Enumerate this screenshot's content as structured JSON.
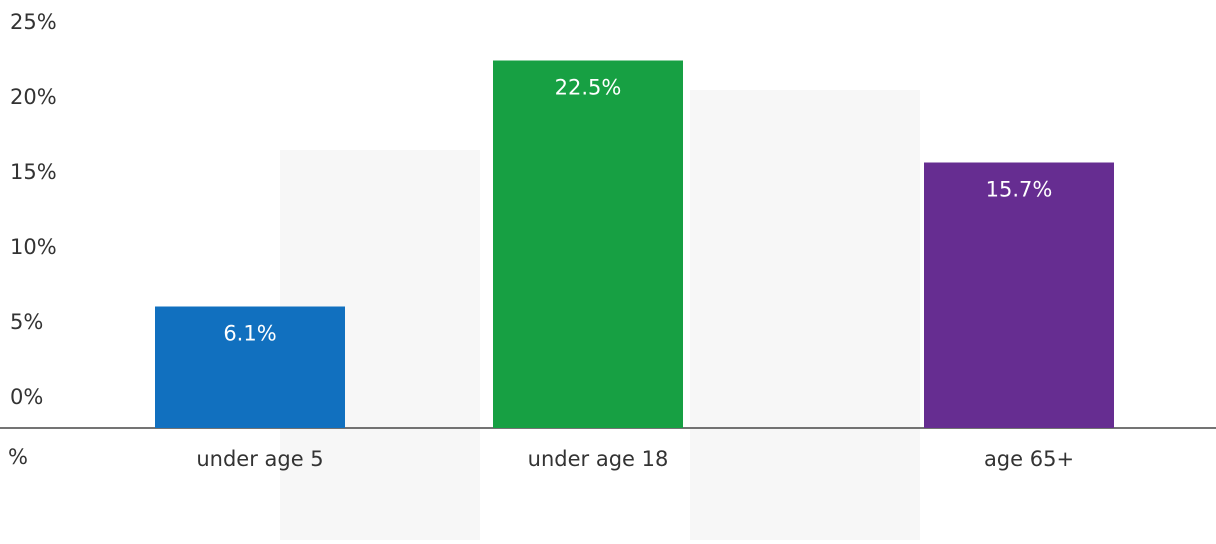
{
  "chart_data": {
    "type": "bar",
    "y_label": "%",
    "categories": [
      "under age 5",
      "under age 18",
      "age 65+"
    ],
    "values": [
      6.1,
      22.5,
      15.7
    ],
    "value_labels": [
      "6.1%",
      "22.5%",
      "15.7%"
    ],
    "colors": [
      "#1170bf",
      "#17a043",
      "#662d91"
    ],
    "ylim": [
      0,
      25
    ],
    "yticks": [
      {
        "value": 0,
        "label": "0%"
      },
      {
        "value": 5,
        "label": "5%"
      },
      {
        "value": 10,
        "label": "10%"
      },
      {
        "value": 15,
        "label": "15%"
      },
      {
        "value": 20,
        "label": "20%"
      },
      {
        "value": 25,
        "label": "25%"
      }
    ]
  }
}
